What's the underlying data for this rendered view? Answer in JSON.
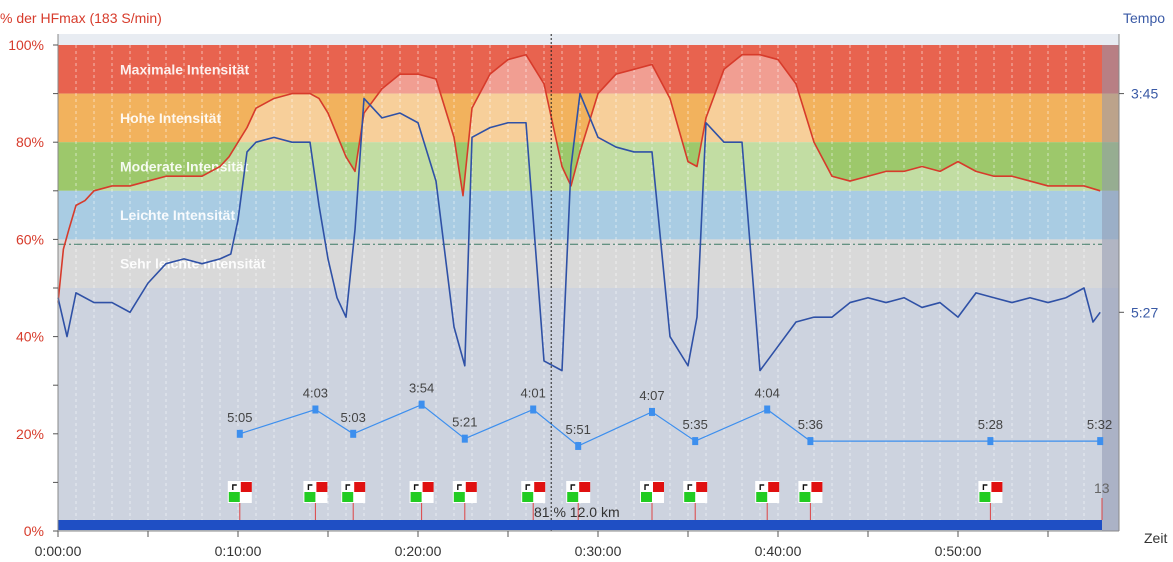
{
  "chart_data": {
    "type": "line",
    "title": "",
    "left_axis_title": "% der HFmax (183 S/min)",
    "right_axis_title": "Tempo",
    "x_axis_title": "Zeit",
    "x_range_min": [
      0,
      58
    ],
    "y_range_pct": [
      0,
      100
    ],
    "pace_axis_labels": [
      "3:45",
      "5:27"
    ],
    "x_tick_labels": [
      "0:00:00",
      "0:10:00",
      "0:20:00",
      "0:30:00",
      "0:40:00",
      "0:50:00"
    ],
    "x_tick_values_min": [
      0,
      10,
      20,
      30,
      40,
      50
    ],
    "y_tick_labels": [
      "0%",
      "20%",
      "40%",
      "60%",
      "80%",
      "100%"
    ],
    "y_tick_values": [
      0,
      20,
      40,
      60,
      80,
      100
    ],
    "zones": [
      {
        "name": "Maximale Intensität",
        "from": 90,
        "to": 100,
        "color": "#e8634f"
      },
      {
        "name": "Hohe Intensität",
        "from": 80,
        "to": 90,
        "color": "#f2b25d"
      },
      {
        "name": "Moderate Intensität",
        "from": 70,
        "to": 80,
        "color": "#9dc86b"
      },
      {
        "name": "Leichte Intensität",
        "from": 60,
        "to": 70,
        "color": "#a9cce3"
      },
      {
        "name": "Sehr leichte Intensität",
        "from": 50,
        "to": 60,
        "color": "#d9d9d9"
      }
    ],
    "threshold_line_pct": 59,
    "series": [
      {
        "name": "Herzfrequenz (% HFmax)",
        "color": "#d73b2b",
        "x": [
          0,
          0.3,
          0.6,
          1.0,
          1.5,
          2,
          3,
          4,
          5,
          6,
          7,
          8,
          9,
          9.5,
          10,
          10.5,
          11,
          12,
          13,
          14,
          14.5,
          15,
          16,
          16.5,
          17,
          18,
          19,
          20,
          21,
          22,
          22.5,
          23,
          24,
          25,
          26,
          27,
          28,
          28.5,
          29,
          30,
          31,
          32,
          33,
          34,
          35,
          35.5,
          36,
          37,
          38,
          39,
          40,
          41,
          42,
          43,
          44,
          45,
          46,
          47,
          48,
          49,
          50,
          51,
          52,
          53,
          54,
          55,
          56,
          57,
          57.9
        ],
        "values": [
          47,
          58,
          62,
          67,
          68,
          70,
          71,
          71,
          72,
          73,
          73,
          73,
          75,
          77,
          80,
          83,
          87,
          89,
          90,
          90,
          89,
          86,
          77,
          74,
          86,
          91,
          94,
          94,
          93,
          81,
          69,
          87,
          94,
          97,
          98,
          92,
          75,
          71,
          78,
          90,
          94,
          95,
          96,
          89,
          76,
          75,
          85,
          95,
          98,
          98,
          97,
          92,
          80,
          73,
          72,
          73,
          74,
          74,
          75,
          74,
          76,
          74,
          73,
          73,
          72,
          71,
          71,
          71,
          70
        ]
      },
      {
        "name": "Tempo",
        "color": "#2f51a6",
        "x": [
          0,
          0.5,
          1,
          2,
          3,
          4,
          5,
          6,
          7,
          8,
          9,
          9.6,
          10,
          10.5,
          11,
          12,
          13,
          14,
          14.5,
          15,
          15.5,
          16,
          16.5,
          17,
          18,
          19,
          20,
          21,
          22,
          22.6,
          23,
          24,
          25,
          26,
          27,
          28,
          28.5,
          29,
          30,
          31,
          32,
          33,
          34,
          35,
          35.5,
          36,
          37,
          38,
          39,
          40,
          41,
          42,
          43,
          44,
          45,
          46,
          47,
          48,
          49,
          50,
          51,
          52,
          53,
          54,
          55,
          56,
          57,
          57.5,
          57.9
        ],
        "values": [
          48,
          40,
          49,
          47,
          47,
          45,
          51,
          55,
          56,
          55,
          56,
          57,
          64,
          78,
          80,
          81,
          80,
          80,
          67,
          56,
          48,
          44,
          62,
          89,
          85,
          86,
          84,
          72,
          42,
          34,
          81,
          83,
          84,
          84,
          35,
          33,
          75,
          90,
          81,
          79,
          78,
          78,
          40,
          34,
          44,
          84,
          80,
          80,
          33,
          38,
          43,
          44,
          44,
          47,
          48,
          47,
          48,
          46,
          47,
          44,
          49,
          48,
          47,
          48,
          47,
          48,
          50,
          43,
          45
        ]
      }
    ],
    "lap_pace": {
      "color": "#3d8fee",
      "points": [
        {
          "x": 10.1,
          "pct": 20.0,
          "label": "5:05"
        },
        {
          "x": 14.3,
          "pct": 25.0,
          "label": "4:03"
        },
        {
          "x": 16.4,
          "pct": 20.0,
          "label": "5:03"
        },
        {
          "x": 20.2,
          "pct": 26.0,
          "label": "3:54"
        },
        {
          "x": 22.6,
          "pct": 19.0,
          "label": "5:21"
        },
        {
          "x": 26.4,
          "pct": 25.0,
          "label": "4:01"
        },
        {
          "x": 28.9,
          "pct": 17.5,
          "label": "5:51"
        },
        {
          "x": 33.0,
          "pct": 24.5,
          "label": "4:07"
        },
        {
          "x": 35.4,
          "pct": 18.5,
          "label": "5:35"
        },
        {
          "x": 39.4,
          "pct": 25.0,
          "label": "4:04"
        },
        {
          "x": 41.8,
          "pct": 18.5,
          "label": "5:36"
        },
        {
          "x": 51.8,
          "pct": 18.5,
          "label": "5:28"
        },
        {
          "x": 57.9,
          "pct": 18.5,
          "label": "5:32"
        }
      ]
    },
    "lap_markers_min": [
      10.1,
      14.3,
      16.4,
      20.2,
      22.6,
      26.4,
      28.9,
      33.0,
      35.4,
      39.4,
      41.8,
      51.8
    ],
    "end_lap_label": "13",
    "cursor": {
      "x_min": 27.4,
      "label": "81 % 12.0 km"
    }
  }
}
